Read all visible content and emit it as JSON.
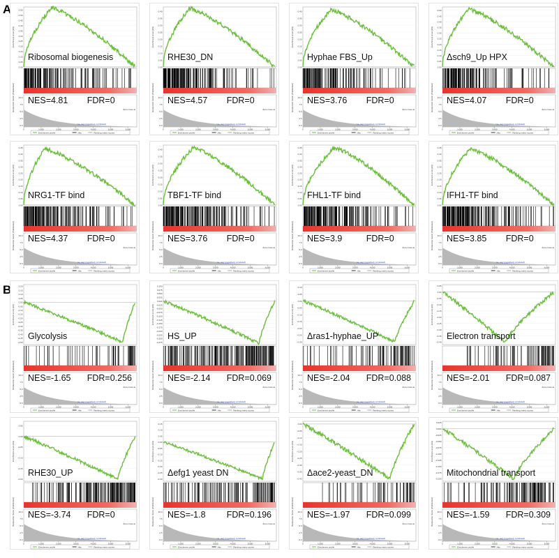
{
  "section_labels": [
    "A",
    "B"
  ],
  "common": {
    "es_axis_label": "Enrichment score (ES)",
    "metric_axis_label": "Ranked list metric (PreRanked)",
    "x_axis_label": "Rank in Ordered Dataset",
    "pos_label": "'na_pos' (positively correlated)",
    "neg_label": "'na_neg' (negatively correlated)",
    "zero_cross": "Zero cross at",
    "legend": [
      "Enrichment profile",
      "Hits",
      "Ranking metric scores"
    ],
    "x_ticks": [
      "0",
      "1,000",
      "2,000",
      "3,000",
      "4,000",
      "5,000",
      "6,000"
    ],
    "metric_ticks": [
      "10.0",
      "7.5",
      "5.0",
      "2.5",
      "0.0"
    ],
    "colors": {
      "profile": "#6abf3a",
      "hits": "#000000",
      "ranking": "#b8b8b8",
      "bar_pos": "#e8342c",
      "bar_neg": "#f2b2b2"
    }
  },
  "chart_data": [
    {
      "type": "line",
      "gene_set": "Ribosomal biogenesis",
      "nes": "NES=4.81",
      "fdr": "FDR=0",
      "es_ticks": [
        "0.00",
        "0.05",
        "0.10",
        "0.15",
        "0.20",
        "0.25",
        "0.30",
        "0.35",
        "0.40",
        "0.45",
        "0.50",
        "0.55"
      ],
      "ylim": [
        0.0,
        0.58
      ],
      "peak_rank": 1600,
      "peak_es": 0.57,
      "end_es": 0.0,
      "hit_density": [
        9,
        5,
        3,
        2,
        2,
        1,
        1
      ]
    },
    {
      "type": "line",
      "gene_set": "RHE30_DN",
      "nes": "NES=4.57",
      "fdr": "FDR=0",
      "es_ticks": [
        "0.00",
        "0.05",
        "0.10",
        "0.15",
        "0.20",
        "0.25",
        "0.30",
        "0.35",
        "0.40"
      ],
      "ylim": [
        0.0,
        0.43
      ],
      "peak_rank": 1500,
      "peak_es": 0.42,
      "end_es": 0.0,
      "hit_density": [
        12,
        7,
        4,
        2,
        1,
        1,
        1
      ]
    },
    {
      "type": "line",
      "gene_set": "Hyphae FBS_Up",
      "nes": "NES=3.76",
      "fdr": "FDR=0",
      "es_ticks": [
        "0.00",
        "0.05",
        "0.10",
        "0.15",
        "0.20",
        "0.25",
        "0.30",
        "0.35",
        "0.40"
      ],
      "ylim": [
        0.0,
        0.43
      ],
      "peak_rank": 1600,
      "peak_es": 0.41,
      "end_es": 0.0,
      "hit_density": [
        8,
        5,
        3,
        2,
        1,
        1,
        1
      ]
    },
    {
      "type": "line",
      "gene_set": "Δsch9_Up HPX",
      "nes": "NES=4.07",
      "fdr": "FDR=0",
      "es_ticks": [
        "0.00",
        "0.05",
        "0.10",
        "0.15",
        "0.20",
        "0.25",
        "0.30",
        "0.35",
        "0.40",
        "0.45",
        "0.50"
      ],
      "ylim": [
        0.0,
        0.53
      ],
      "peak_rank": 1500,
      "peak_es": 0.51,
      "end_es": 0.0,
      "hit_density": [
        9,
        6,
        3,
        2,
        1,
        1,
        1
      ]
    },
    {
      "type": "line",
      "gene_set": "NRG1-TF bind",
      "nes": "NES=4.37",
      "fdr": "FDR=0",
      "es_ticks": [
        "0.00",
        "0.05",
        "0.10",
        "0.15",
        "0.20",
        "0.25",
        "0.30",
        "0.35",
        "0.40",
        "0.45"
      ],
      "ylim": [
        0.0,
        0.47
      ],
      "peak_rank": 1200,
      "peak_es": 0.44,
      "end_es": 0.0,
      "hit_density": [
        10,
        7,
        4,
        3,
        2,
        1,
        1
      ]
    },
    {
      "type": "line",
      "gene_set": "TBF1-TF bind",
      "nes": "NES=3.76",
      "fdr": "FDR=0",
      "es_ticks": [
        "0.00",
        "0.05",
        "0.10",
        "0.15",
        "0.20",
        "0.25",
        "0.30",
        "0.35",
        "0.40"
      ],
      "ylim": [
        0.0,
        0.43
      ],
      "peak_rank": 1700,
      "peak_es": 0.41,
      "end_es": 0.0,
      "hit_density": [
        10,
        7,
        5,
        3,
        2,
        1,
        1
      ]
    },
    {
      "type": "line",
      "gene_set": "FHL1-TF bind",
      "nes": "NES=3.9",
      "fdr": "FDR=0",
      "es_ticks": [
        "0.00",
        "0.05",
        "0.10",
        "0.15",
        "0.20",
        "0.25",
        "0.30",
        "0.35",
        "0.40",
        "0.45"
      ],
      "ylim": [
        0.0,
        0.47
      ],
      "peak_rank": 1800,
      "peak_es": 0.45,
      "end_es": 0.0,
      "hit_density": [
        10,
        8,
        5,
        3,
        2,
        1,
        1
      ]
    },
    {
      "type": "line",
      "gene_set": "IFH1-TF bind",
      "nes": "NES=3.85",
      "fdr": "FDR=0",
      "es_ticks": [
        "0.00",
        "0.05",
        "0.10",
        "0.15",
        "0.20",
        "0.25",
        "0.30",
        "0.35",
        "0.40",
        "0.45"
      ],
      "ylim": [
        0.0,
        0.47
      ],
      "peak_rank": 1600,
      "peak_es": 0.44,
      "end_es": 0.0,
      "hit_density": [
        10,
        8,
        5,
        3,
        2,
        1,
        1
      ]
    },
    {
      "type": "line",
      "gene_set": "Glycolysis",
      "nes": "NES=-1.65",
      "fdr": "FDR=0.256",
      "es_ticks": [
        "0.20",
        "0.15",
        "0.10",
        "0.05",
        "0.00",
        "-0.05",
        "-0.10",
        "-0.15",
        "-0.20",
        "-0.25",
        "-0.30",
        "-0.35",
        "-0.40",
        "-0.45",
        "-0.50"
      ],
      "ylim": [
        -0.53,
        0.22
      ],
      "peak_rank": 5700,
      "peak_es": -0.5,
      "end_es": 0.0,
      "hit_density": [
        1,
        1,
        1,
        1,
        1,
        2,
        6
      ]
    },
    {
      "type": "line",
      "gene_set": "HS_UP",
      "nes": "NES=-2.14",
      "fdr": "FDR=0.069",
      "es_ticks": [
        "0.100",
        "0.075",
        "0.050",
        "0.025",
        "0.000",
        "-0.025",
        "-0.050",
        "-0.075",
        "-0.100",
        "-0.125",
        "-0.150",
        "-0.175",
        "-0.200",
        "-0.225",
        "-0.250",
        "-0.275"
      ],
      "ylim": [
        -0.29,
        0.11
      ],
      "peak_rank": 5500,
      "peak_es": -0.28,
      "end_es": 0.0,
      "hit_density": [
        4,
        4,
        4,
        5,
        5,
        7,
        10
      ]
    },
    {
      "type": "line",
      "gene_set": "Δras1-hyphae_UP",
      "nes": "NES=-2.04",
      "fdr": "FDR=0.088",
      "es_ticks": [
        "0.10",
        "0.05",
        "0.00",
        "-0.05",
        "-0.10",
        "-0.15",
        "-0.20",
        "-0.25",
        "-0.30"
      ],
      "ylim": [
        -0.32,
        0.12
      ],
      "peak_rank": 5300,
      "peak_es": -0.3,
      "end_es": 0.0,
      "hit_density": [
        1,
        1,
        1,
        2,
        2,
        5,
        4
      ]
    },
    {
      "type": "line",
      "gene_set": "Electron transport",
      "nes": "NES=-2.01",
      "fdr": "FDR=0.087",
      "es_ticks": [
        "0.05",
        "0.00",
        "-0.05",
        "-0.10",
        "-0.15",
        "-0.20",
        "-0.25",
        "-0.30",
        "-0.35",
        "-0.40"
      ],
      "ylim": [
        -0.42,
        0.06
      ],
      "peak_rank": 3600,
      "peak_es": -0.4,
      "end_es": 0.0,
      "hit_density": [
        0,
        1,
        1,
        2,
        2,
        4,
        6
      ]
    },
    {
      "type": "line",
      "gene_set": "RHE30_UP",
      "nes": "NES=-3.74",
      "fdr": "FDR=0",
      "es_ticks": [
        "0.05",
        "0.00",
        "-0.05",
        "-0.10",
        "-0.15",
        "-0.20"
      ],
      "ylim": [
        -0.21,
        0.07
      ],
      "peak_rank": 5400,
      "peak_es": -0.2,
      "end_es": 0.0,
      "hit_density": [
        1,
        2,
        3,
        4,
        5,
        8,
        10
      ]
    },
    {
      "type": "line",
      "gene_set": "Δefg1 yeast DN",
      "nes": "NES=-1.8",
      "fdr": "FDR=0.196",
      "es_ticks": [
        "0.15",
        "0.10",
        "0.05",
        "0.00",
        "-0.05",
        "-0.10",
        "-0.15",
        "-0.20",
        "-0.25",
        "-0.30"
      ],
      "ylim": [
        -0.32,
        0.17
      ],
      "peak_rank": 5700,
      "peak_es": -0.3,
      "end_es": 0.0,
      "hit_density": [
        2,
        2,
        3,
        3,
        3,
        4,
        7
      ]
    },
    {
      "type": "line",
      "gene_set": "Δace2-yeast_DN",
      "nes": "NES=-1.97",
      "fdr": "FDR=0.099",
      "es_ticks": [
        "0.00",
        "-0.05",
        "-0.10",
        "-0.15",
        "-0.20",
        "-0.25",
        "-0.30",
        "-0.35",
        "-0.40"
      ],
      "ylim": [
        -0.42,
        0.02
      ],
      "peak_rank": 5000,
      "peak_es": -0.4,
      "end_es": 0.0,
      "hit_density": [
        0,
        1,
        1,
        1,
        2,
        3,
        6
      ]
    },
    {
      "type": "line",
      "gene_set": "Mitochondrial transport",
      "nes": "NES=-1.59",
      "fdr": "FDR=0.309",
      "es_ticks": [
        "0.025",
        "0.000",
        "-0.025",
        "-0.050",
        "-0.075",
        "-0.100",
        "-0.125",
        "-0.150",
        "-0.175",
        "-0.200"
      ],
      "ylim": [
        -0.21,
        0.03
      ],
      "peak_rank": 4100,
      "peak_es": -0.2,
      "end_es": 0.0,
      "hit_density": [
        1,
        1,
        2,
        3,
        4,
        6,
        5
      ]
    }
  ]
}
